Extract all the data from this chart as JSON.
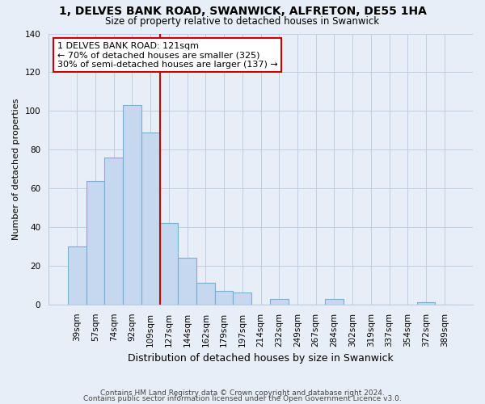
{
  "title": "1, DELVES BANK ROAD, SWANWICK, ALFRETON, DE55 1HA",
  "subtitle": "Size of property relative to detached houses in Swanwick",
  "xlabel": "Distribution of detached houses by size in Swanwick",
  "ylabel": "Number of detached properties",
  "bar_labels": [
    "39sqm",
    "57sqm",
    "74sqm",
    "92sqm",
    "109sqm",
    "127sqm",
    "144sqm",
    "162sqm",
    "179sqm",
    "197sqm",
    "214sqm",
    "232sqm",
    "249sqm",
    "267sqm",
    "284sqm",
    "302sqm",
    "319sqm",
    "337sqm",
    "354sqm",
    "372sqm",
    "389sqm"
  ],
  "bar_values": [
    30,
    64,
    76,
    103,
    89,
    42,
    24,
    11,
    7,
    6,
    0,
    3,
    0,
    0,
    3,
    0,
    0,
    0,
    0,
    1,
    0
  ],
  "bar_color": "#c5d8f0",
  "bar_edge_color": "#7aadd4",
  "highlight_line_color": "#cc0000",
  "annotation_title": "1 DELVES BANK ROAD: 121sqm",
  "annotation_line1": "← 70% of detached houses are smaller (325)",
  "annotation_line2": "30% of semi-detached houses are larger (137) →",
  "annotation_box_facecolor": "#ffffff",
  "annotation_box_edgecolor": "#cc0000",
  "ylim": [
    0,
    140
  ],
  "yticks": [
    0,
    20,
    40,
    60,
    80,
    100,
    120,
    140
  ],
  "footer1": "Contains HM Land Registry data © Crown copyright and database right 2024.",
  "footer2": "Contains public sector information licensed under the Open Government Licence v3.0.",
  "bg_color": "#e8eef7",
  "plot_bg_color": "#e8eef7",
  "grid_color": "#c0cde0",
  "title_fontsize": 10,
  "subtitle_fontsize": 8.5,
  "ylabel_fontsize": 8,
  "xlabel_fontsize": 9,
  "tick_fontsize": 7.5,
  "footer_fontsize": 6.5
}
